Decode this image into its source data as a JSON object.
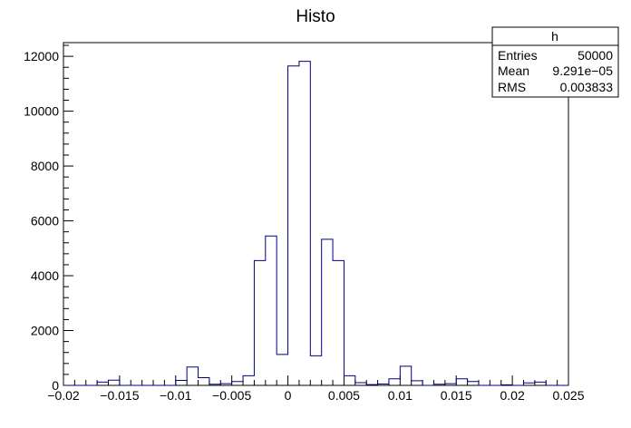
{
  "chart_data": {
    "type": "bar",
    "title": "Histo",
    "xlabel": "",
    "ylabel": "",
    "xlim": [
      -0.02,
      0.025
    ],
    "ylim": [
      0,
      12500
    ],
    "bin_width": 0.001,
    "bin_low_edges": [
      -0.02,
      -0.019,
      -0.018,
      -0.017,
      -0.016,
      -0.015,
      -0.014,
      -0.013,
      -0.012,
      -0.011,
      -0.01,
      -0.009,
      -0.008,
      -0.007,
      -0.006,
      -0.005,
      -0.004,
      -0.003,
      -0.002,
      -0.001,
      0.0,
      0.001,
      0.002,
      0.003,
      0.004,
      0.005,
      0.006,
      0.007,
      0.008,
      0.009,
      0.01,
      0.011,
      0.012,
      0.013,
      0.014,
      0.015,
      0.016,
      0.017,
      0.018,
      0.019,
      0.02,
      0.021,
      0.022,
      0.023,
      0.024
    ],
    "values": [
      0,
      0,
      0,
      120,
      190,
      0,
      0,
      0,
      0,
      0,
      180,
      670,
      280,
      40,
      60,
      140,
      350,
      4550,
      5450,
      1130,
      11650,
      11820,
      1080,
      5330,
      4550,
      350,
      100,
      30,
      50,
      240,
      700,
      170,
      0,
      40,
      60,
      240,
      140,
      0,
      0,
      20,
      0,
      90,
      120,
      0,
      0
    ],
    "x_ticks": [
      -0.02,
      -0.015,
      -0.01,
      -0.005,
      0,
      0.005,
      0.01,
      0.015,
      0.02,
      0.025
    ],
    "x_tick_labels": [
      "−0.02",
      "−0.015",
      "−0.01",
      "−0.005",
      "0",
      "0.005",
      "0.01",
      "0.015",
      "0.02",
      "0.025"
    ],
    "y_ticks": [
      0,
      2000,
      4000,
      6000,
      8000,
      10000,
      12000
    ],
    "y_tick_labels": [
      "0",
      "2000",
      "4000",
      "6000",
      "8000",
      "10000",
      "12000"
    ],
    "grid": false,
    "colors": {
      "line": "#000080",
      "frame": "#000000"
    },
    "stats_box": {
      "name": "h",
      "rows": [
        {
          "label": "Entries",
          "value": "50000"
        },
        {
          "label": "Mean",
          "value": "9.291e−05"
        },
        {
          "label": "RMS",
          "value": "0.003833"
        }
      ],
      "placement": "top-right"
    }
  }
}
